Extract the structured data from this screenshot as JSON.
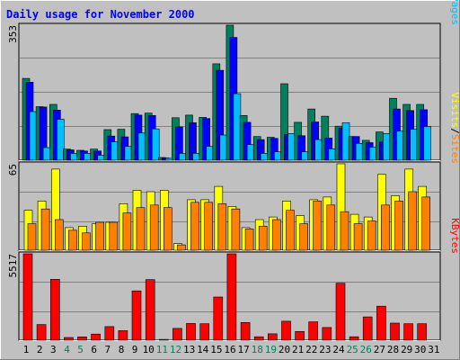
{
  "title": "Daily usage for November 2000",
  "colors": {
    "background": "#c0c0c0",
    "plot_background": "#c0c0c0",
    "hits": "#00805c",
    "files": "#0000ff",
    "pages": "#00c0ff",
    "visits": "#ffff00",
    "sites": "#ff8000",
    "kbytes": "#ff0000",
    "title": "#0000ff",
    "weekend_label": "#00805c",
    "weekday_label": "#000000",
    "grid": "#808080"
  },
  "chart_data": [
    {
      "type": "bar",
      "panel": "top",
      "ymax_label": "353",
      "ylim": [
        0,
        353
      ],
      "grid": true,
      "legend": [
        "Pages",
        "/",
        "Files",
        "/",
        "Hits"
      ],
      "categories": [
        "1",
        "2",
        "3",
        "4",
        "5",
        "6",
        "7",
        "8",
        "9",
        "10",
        "11",
        "12",
        "13",
        "14",
        "15",
        "16",
        "17",
        "18",
        "19",
        "20",
        "21",
        "22",
        "23",
        "24",
        "25",
        "26",
        "27",
        "28",
        "29",
        "30",
        "31"
      ],
      "series": [
        {
          "name": "Hits",
          "values": [
            214,
            140,
            146,
            29,
            26,
            29,
            80,
            81,
            122,
            123,
            7,
            111,
            118,
            112,
            252,
            353,
            117,
            62,
            60,
            200,
            99,
            134,
            115,
            89,
            62,
            52,
            74,
            162,
            146,
            146,
            0
          ]
        },
        {
          "name": "Files",
          "values": [
            204,
            139,
            131,
            27,
            24,
            24,
            63,
            61,
            118,
            117,
            6,
            87,
            98,
            109,
            235,
            321,
            99,
            54,
            57,
            67,
            64,
            100,
            58,
            83,
            62,
            46,
            48,
            134,
            130,
            132,
            0
          ]
        },
        {
          "name": "Pages",
          "values": [
            127,
            33,
            107,
            18,
            18,
            13,
            48,
            36,
            71,
            82,
            5,
            18,
            18,
            36,
            66,
            174,
            41,
            18,
            22,
            70,
            22,
            54,
            30,
            98,
            44,
            34,
            70,
            76,
            81,
            88,
            0
          ]
        }
      ]
    },
    {
      "type": "bar",
      "panel": "middle",
      "ymax_label": "65",
      "ylim": [
        0,
        65
      ],
      "grid": true,
      "legend": [
        "Sites",
        "/",
        "Visits"
      ],
      "categories": [
        "1",
        "2",
        "3",
        "4",
        "5",
        "6",
        "7",
        "8",
        "9",
        "10",
        "11",
        "12",
        "13",
        "14",
        "15",
        "16",
        "17",
        "18",
        "19",
        "20",
        "21",
        "22",
        "23",
        "24",
        "25",
        "26",
        "27",
        "28",
        "29",
        "30",
        "31"
      ],
      "series": [
        {
          "name": "Visits",
          "values": [
            30,
            37,
            61,
            17,
            18,
            20,
            21,
            35,
            45,
            44,
            45,
            5,
            38,
            38,
            48,
            33,
            17,
            23,
            25,
            37,
            26,
            38,
            40,
            65,
            27,
            25,
            57,
            41,
            61,
            48,
            0
          ]
        },
        {
          "name": "Sites",
          "values": [
            20,
            31,
            23,
            15,
            13,
            21,
            21,
            28,
            32,
            34,
            32,
            4,
            36,
            36,
            35,
            31,
            16,
            18,
            23,
            30,
            20,
            37,
            34,
            29,
            20,
            22,
            34,
            37,
            44,
            40,
            0
          ]
        }
      ]
    },
    {
      "type": "bar",
      "panel": "bottom",
      "ymax_label": "5517",
      "ylim": [
        0,
        5517
      ],
      "grid": true,
      "legend": [
        "KBytes"
      ],
      "categories": [
        "1",
        "2",
        "3",
        "4",
        "5",
        "6",
        "7",
        "8",
        "9",
        "10",
        "11",
        "12",
        "13",
        "14",
        "15",
        "16",
        "17",
        "18",
        "19",
        "20",
        "21",
        "22",
        "23",
        "24",
        "25",
        "26",
        "27",
        "28",
        "29",
        "30",
        "31"
      ],
      "series": [
        {
          "name": "KBytes",
          "values": [
            5517,
            1000,
            3890,
            170,
            210,
            390,
            870,
            610,
            3150,
            3870,
            50,
            750,
            1070,
            1050,
            2760,
            5517,
            1130,
            220,
            410,
            1210,
            560,
            1170,
            810,
            3640,
            220,
            1490,
            2170,
            1090,
            1050,
            1050,
            0
          ]
        }
      ]
    }
  ]
}
